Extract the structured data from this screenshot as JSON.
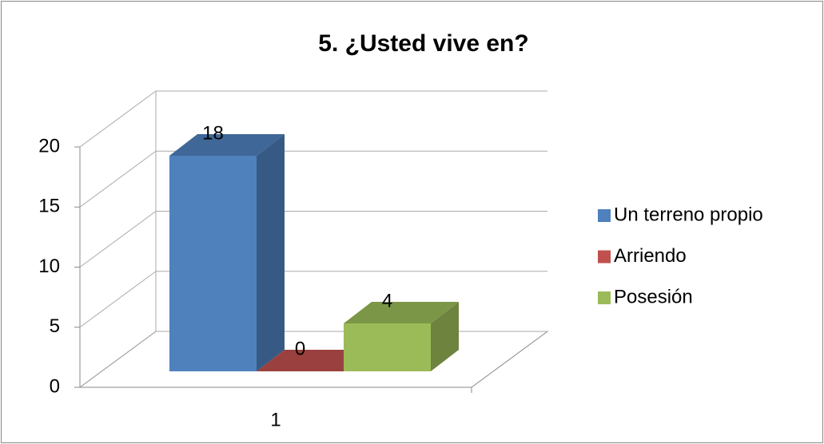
{
  "chart_data": {
    "type": "bar3d",
    "title": "5. ¿Usted vive en?",
    "categories": [
      "1"
    ],
    "series": [
      {
        "name": "Un terreno propio",
        "color": "#4f81bd",
        "values": [
          18
        ]
      },
      {
        "name": "Arriendo",
        "color": "#c0504d",
        "values": [
          0
        ]
      },
      {
        "name": "Posesión",
        "color": "#9bbb59",
        "values": [
          4
        ]
      }
    ],
    "ylim": [
      0,
      20
    ],
    "yticks": [
      0,
      5,
      10,
      15,
      20
    ],
    "grid": true,
    "legend": "right"
  }
}
